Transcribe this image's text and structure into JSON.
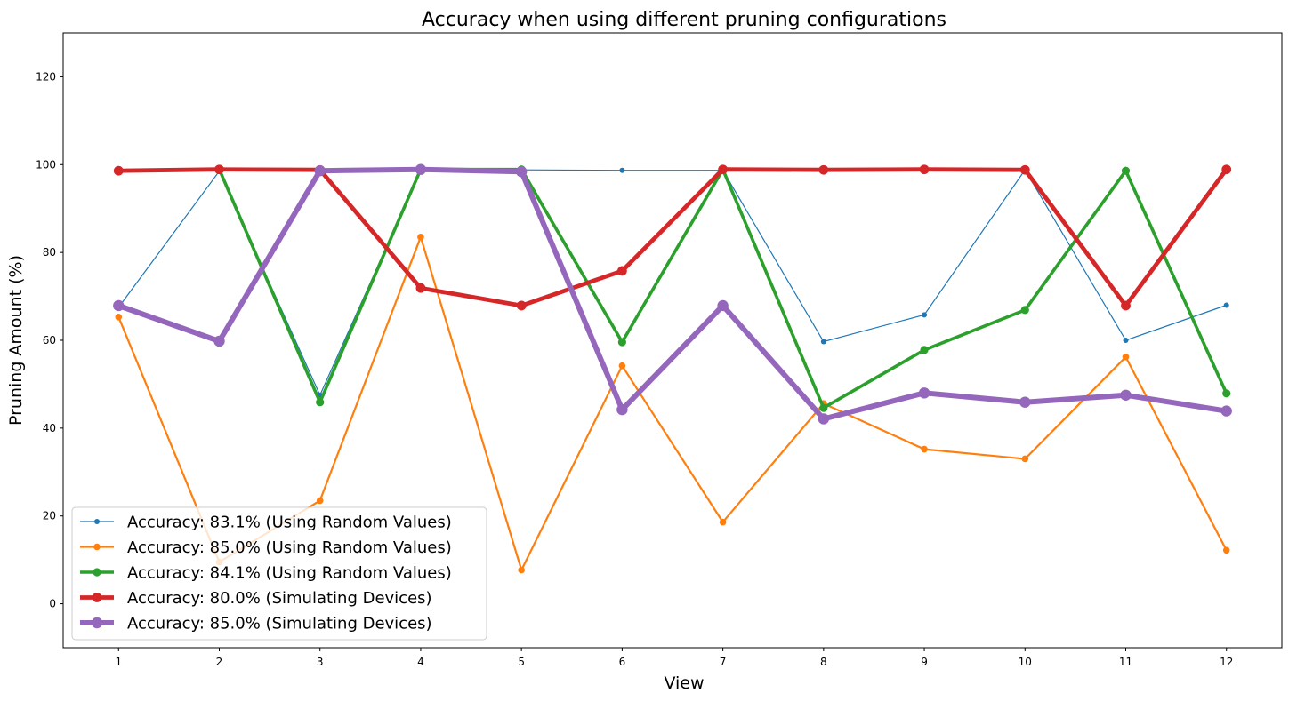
{
  "chart_data": {
    "type": "line",
    "title": "Accuracy when using different pruning configurations",
    "xlabel": "View",
    "ylabel": "Pruning Amount (%)",
    "x": [
      1,
      2,
      3,
      4,
      5,
      6,
      7,
      8,
      9,
      10,
      11,
      12
    ],
    "xlim": [
      0.45,
      12.55
    ],
    "ylim": [
      -10,
      130
    ],
    "yticks": [
      0,
      20,
      40,
      60,
      80,
      100,
      120
    ],
    "grid": false,
    "legend_position": "lower-left",
    "series": [
      {
        "name": "Accuracy: 83.1% (Using Random Values)",
        "color": "#1f77b4",
        "values": [
          67.5,
          98.5,
          47.5,
          98.7,
          98.8,
          98.7,
          98.7,
          59.7,
          65.8,
          98.8,
          60.0,
          68.0
        ]
      },
      {
        "name": "Accuracy: 85.0% (Using Random Values)",
        "color": "#ff7f0e",
        "values": [
          65.3,
          9.5,
          23.5,
          83.5,
          7.7,
          54.2,
          18.6,
          45.6,
          35.2,
          33.0,
          56.2,
          12.2
        ]
      },
      {
        "name": "Accuracy: 84.1% (Using Random Values)",
        "color": "#2ca02c",
        "values": [
          null,
          98.9,
          45.9,
          98.9,
          98.9,
          59.6,
          98.9,
          44.6,
          57.8,
          66.9,
          98.6,
          47.9
        ]
      },
      {
        "name": "Accuracy: 80.0% (Simulating Devices)",
        "color": "#d62728",
        "values": [
          98.6,
          98.9,
          98.8,
          71.9,
          67.9,
          75.8,
          98.9,
          98.8,
          98.9,
          98.8,
          67.9,
          98.9
        ]
      },
      {
        "name": "Accuracy: 85.0% (Simulating Devices)",
        "color": "#9467bd",
        "values": [
          67.9,
          59.8,
          98.6,
          98.9,
          98.4,
          44.2,
          67.9,
          42.1,
          48.0,
          45.9,
          47.5,
          43.9
        ]
      }
    ]
  }
}
